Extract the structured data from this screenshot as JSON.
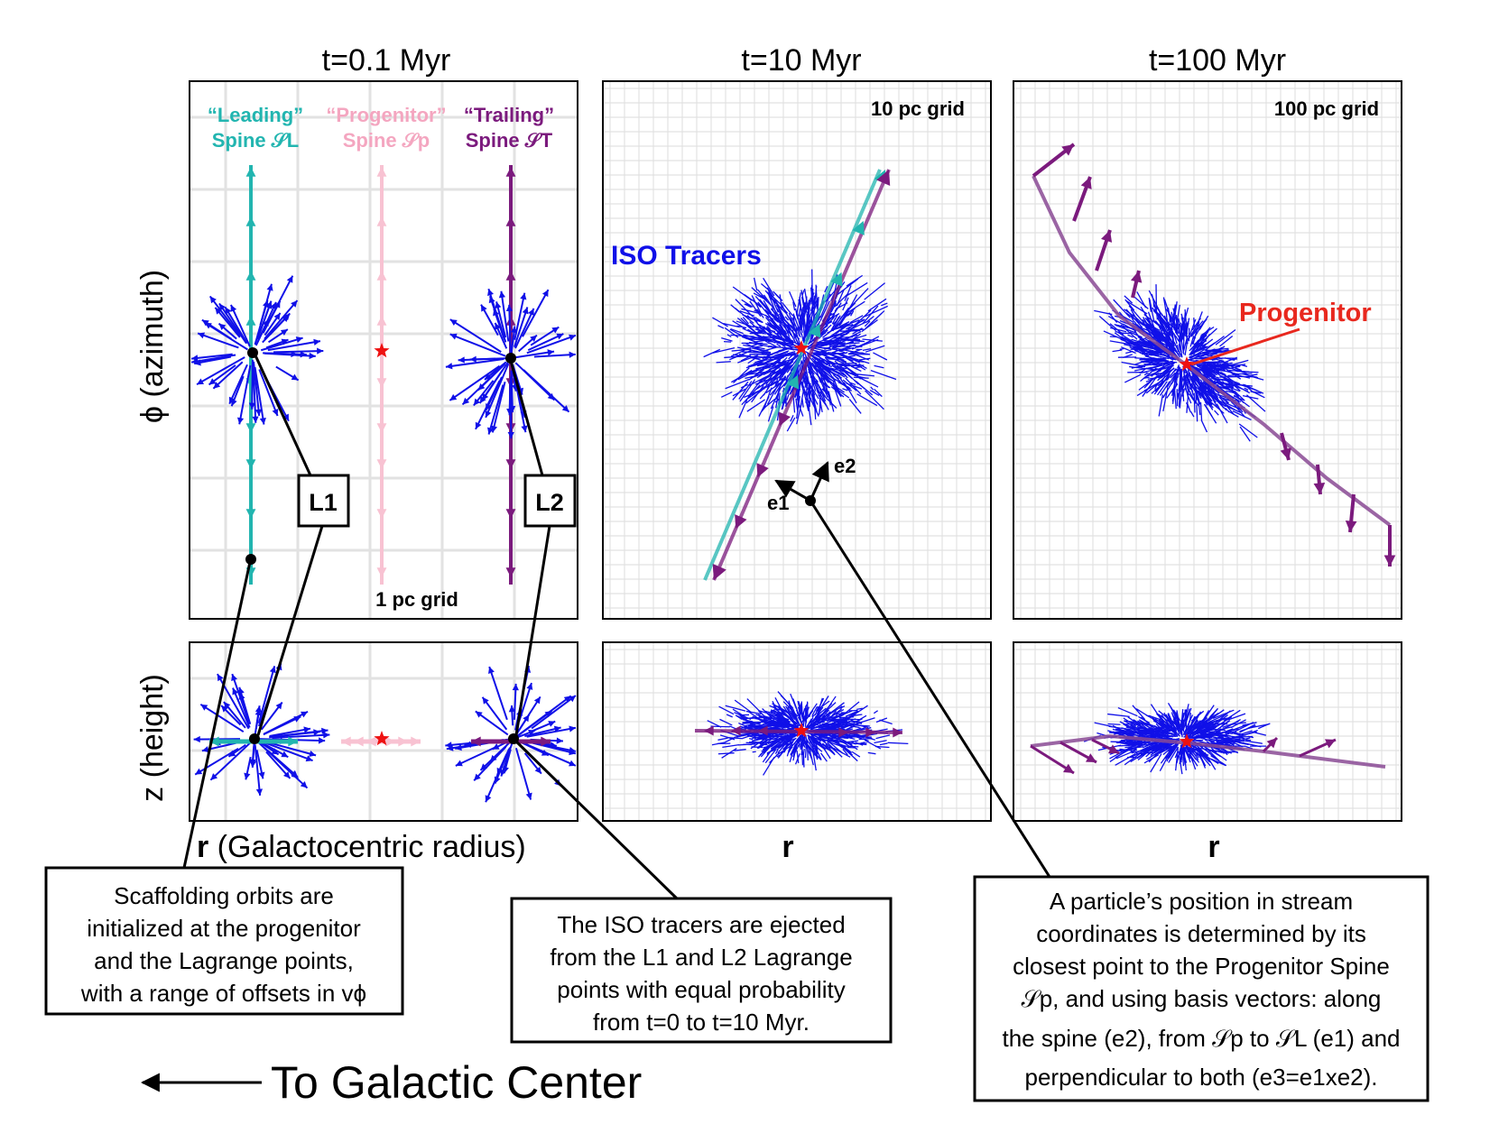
{
  "panel_titles": [
    "t=0.1 Myr",
    "t=10 Myr",
    "t=100 Myr"
  ],
  "y_axis": {
    "top": "ϕ (azimuth)",
    "bottom": "z (height)"
  },
  "x_axis": {
    "left_bold": "r",
    "left_rest": " (Galactocentric radius)",
    "middle": "r",
    "right": "r"
  },
  "grid_labels": {
    "p1": "1 pc grid",
    "p2": "10 pc grid",
    "p3": "100 pc grid"
  },
  "spines": {
    "leading": {
      "line1": "“Leading”",
      "line2": "Spine 𝒮L",
      "color": "#22b5b0"
    },
    "progenitor": {
      "line1": "“Progenitor”",
      "line2": "Spine 𝒮p",
      "color": "#f4a6c0"
    },
    "trailing": {
      "line1": "“Trailing”",
      "line2": "Spine 𝒮T",
      "color": "#7b1a7d"
    }
  },
  "boxes": {
    "l1": "L1",
    "l2": "L2"
  },
  "labels": {
    "iso_tracers": "ISO Tracers",
    "progenitor": "Progenitor",
    "e1": "e1",
    "e2": "e2"
  },
  "notes": {
    "scaffold": [
      "Scaffolding orbits are",
      "initialized at the progenitor",
      "and the Lagrange points,",
      "with a range of offsets in vϕ"
    ],
    "tracers": [
      "The ISO tracers are ejected",
      "from the L1 and L2 Lagrange",
      "points with equal probability",
      "from t=0 to t=10 Myr."
    ],
    "particle": [
      "A particle’s position in stream",
      "coordinates is determined by its",
      "closest point to the Progenitor Spine",
      "𝒮p, and using basis vectors: along",
      "the spine (e2), from 𝒮p to 𝒮L (e1) and",
      "perpendicular to both (e3=e1xe2)."
    ]
  },
  "galactic_center": "To Galactic Center",
  "colors": {
    "tracer": "#1010e8",
    "progenitor_star": "#ee1111",
    "progenitor_label": "#e8281e",
    "grid": "#e2e2e2"
  }
}
